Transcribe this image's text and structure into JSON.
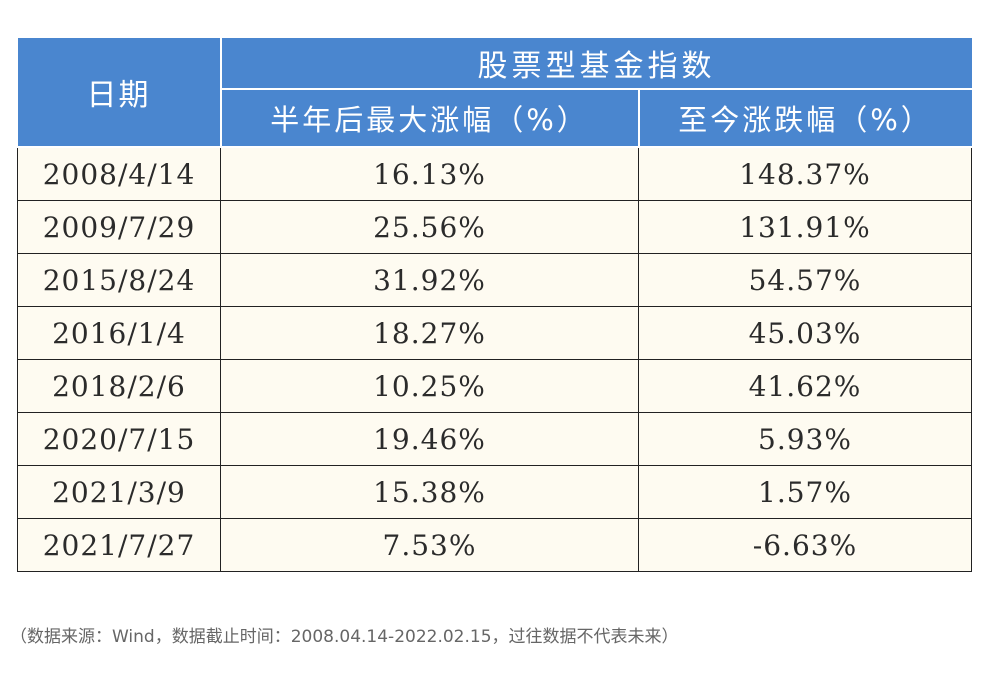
{
  "table": {
    "header": {
      "date": "日期",
      "group": "股票型基金指数",
      "col_max_gain": "半年后最大涨幅（%）",
      "col_change_to_date": "至今涨跌幅（%）"
    },
    "rows": [
      {
        "date": "2008/4/14",
        "max_gain": "16.13%",
        "change_to_date": "148.37%"
      },
      {
        "date": "2009/7/29",
        "max_gain": "25.56%",
        "change_to_date": "131.91%"
      },
      {
        "date": "2015/8/24",
        "max_gain": "31.92%",
        "change_to_date": "54.57%"
      },
      {
        "date": "2016/1/4",
        "max_gain": "18.27%",
        "change_to_date": "45.03%"
      },
      {
        "date": "2018/2/6",
        "max_gain": "10.25%",
        "change_to_date": "41.62%"
      },
      {
        "date": "2020/7/15",
        "max_gain": "19.46%",
        "change_to_date": "5.93%"
      },
      {
        "date": "2021/3/9",
        "max_gain": "15.38%",
        "change_to_date": "1.57%"
      },
      {
        "date": "2021/7/27",
        "max_gain": "7.53%",
        "change_to_date": "-6.63%"
      }
    ]
  },
  "footnote": "（数据来源：Wind，数据截止时间：2008.04.14-2022.02.15，过往数据不代表未来）",
  "colors": {
    "header_bg": "#4a86cf",
    "header_text": "#ffffff",
    "cell_bg": "#fefbf1",
    "border": "#222222"
  }
}
